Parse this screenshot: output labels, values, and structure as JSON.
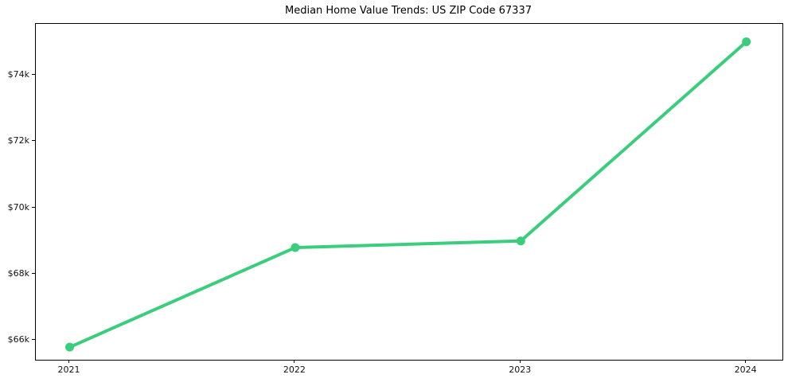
{
  "figure": {
    "background": "#ffffff",
    "title": "Median Home Value Trends: US ZIP Code 67337"
  },
  "chart_data": {
    "type": "line",
    "title": "Median Home Value Trends: US ZIP Code 67337",
    "xlabel": "",
    "ylabel": "",
    "grid": false,
    "legend": "none",
    "x": [
      2021,
      2022,
      2023,
      2024
    ],
    "series": [
      {
        "name": "median-home-value",
        "values": [
          65800,
          68800,
          69000,
          75000
        ],
        "color": "#3acd7c",
        "line_width": 4,
        "marker": "circle",
        "marker_radius": 5.5
      }
    ],
    "xlim": [
      2020.85,
      2024.16
    ],
    "ylim": [
      65420,
      75540
    ],
    "xticks": [
      {
        "value": 2021,
        "label": "2021"
      },
      {
        "value": 2022,
        "label": "2022"
      },
      {
        "value": 2023,
        "label": "2023"
      },
      {
        "value": 2024,
        "label": "2024"
      }
    ],
    "yticks": [
      {
        "value": 66000,
        "label": "$66k"
      },
      {
        "value": 68000,
        "label": "$68k"
      },
      {
        "value": 70000,
        "label": "$70k"
      },
      {
        "value": 72000,
        "label": "$72k"
      },
      {
        "value": 74000,
        "label": "$74k"
      }
    ],
    "spine_color": "#000000",
    "tick_label_color": "#111111"
  }
}
